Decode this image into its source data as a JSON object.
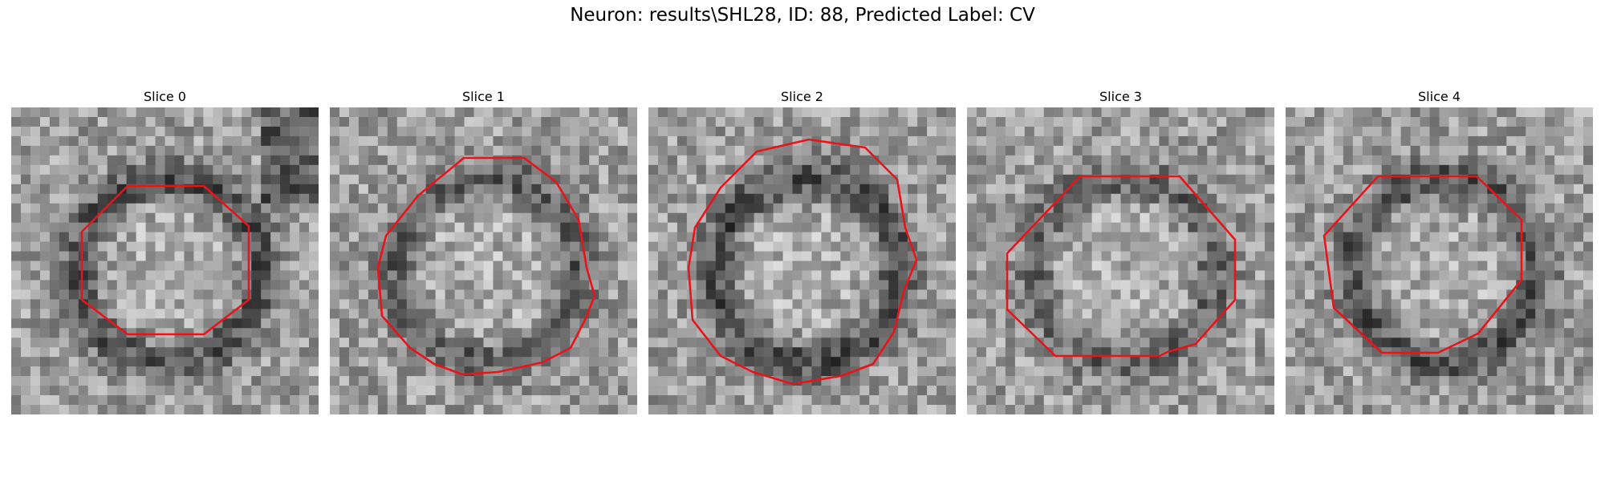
{
  "figure": {
    "title": "Neuron: results\\SHL28, ID: 88, Predicted Label: CV"
  },
  "panels": [
    {
      "title": "Slice 0",
      "seed": 11,
      "dark_ring": 0.9,
      "contour_color": "#e8141a"
    },
    {
      "title": "Slice 1",
      "seed": 23,
      "dark_ring": 0.8,
      "contour_color": "#e8141a"
    },
    {
      "title": "Slice 2",
      "seed": 37,
      "dark_ring": 1.0,
      "contour_color": "#e8141a"
    },
    {
      "title": "Slice 3",
      "seed": 41,
      "dark_ring": 0.7,
      "contour_color": "#e8141a"
    },
    {
      "title": "Slice 4",
      "seed": 53,
      "dark_ring": 0.9,
      "contour_color": "#e8141a"
    }
  ],
  "colormap": "gray"
}
